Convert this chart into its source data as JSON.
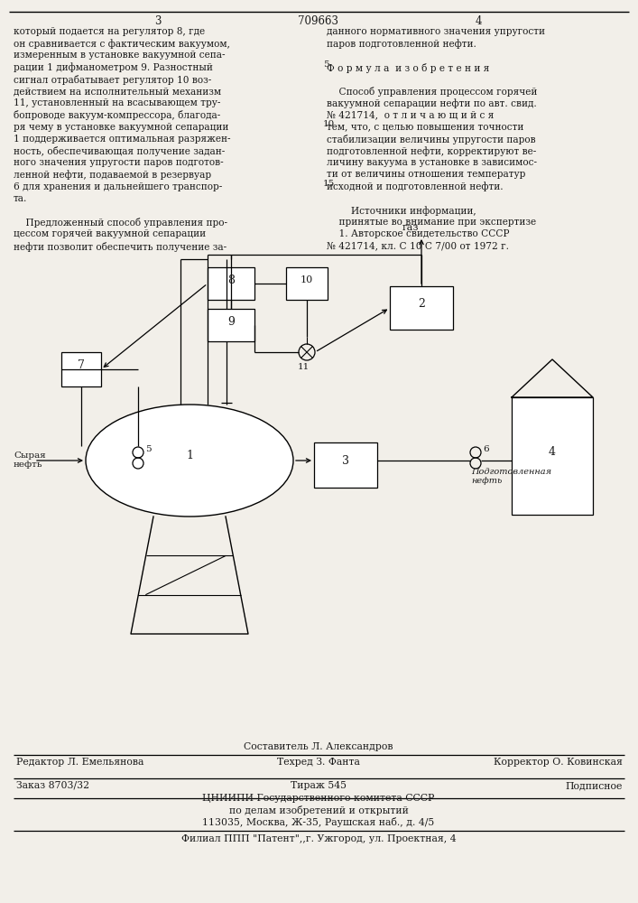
{
  "bg_color": "#f2efe9",
  "text_color": "#1a1a1a",
  "page_number_left": "3",
  "page_number_center": "709663",
  "page_number_right": "4",
  "col_left_text": [
    "который подается на регулятор 8, где",
    "он сравнивается с фактическим вакуумом,",
    "измеренным в установке вакуумной сепа-",
    "рации 1 дифманометром 9. Разностный",
    "сигнал отрабатывает регулятор 10 воз-",
    "действием на исполнительный механизм",
    "11, установленный на всасывающем тру-",
    "бопроводе вакуум-компрессора, благода-",
    "ря чему в установке вакуумной сепарации",
    "1 поддерживается оптимальная разряжен-",
    "ность, обеспечивающая получение задан-",
    "ного значения упругости паров подготов-",
    "ленной нефти, подаваемой в резервуар",
    "6 для хранения и дальнейшего транспор-",
    "та.",
    "",
    "    Предложенный способ управления про-",
    "цессом горячей вакуумной сепарации",
    "нефти позволит обеспечить получение за-"
  ],
  "col_right_text": [
    "данного нормативного значения упругости",
    "паров подготовленной нефти.",
    "",
    "Ф о р м у л а  и з о б р е т е н и я",
    "",
    "    Способ управления процессом горячей",
    "вакуумной сепарации нефти по авт. свид.",
    "№ 421714,  о т л и ч а ю щ и й с я",
    "тем, что, с целью повышения точности",
    "стабилизации величины упругости паров",
    "подготовленной нефти, корректируют ве-",
    "личину вакуума в установке в зависимос-",
    "ти от величины отношения температур",
    "исходной и подготовленной нефти.",
    "",
    "        Источники информации,",
    "    принятые во внимание при экспертизе",
    "    1. Авторское свидетельство СССР",
    "№ 421714, кл. С 10 С 7/00 от 1972 г."
  ],
  "line_number_5": "5",
  "line_number_10": "10",
  "line_number_15": "15",
  "footer_line1": "Составитель Л. Александров",
  "footer_line2_left": "Редактор Л. Емельянова",
  "footer_line2_mid": "Техред З. Фанта",
  "footer_line2_right": "Корректор О. Ковинская",
  "footer_line3_left": "Заказ 8703/32",
  "footer_line3_mid": "Тираж 545",
  "footer_line3_right": "Подписное",
  "footer_line4": "ЦНИИПИ Государственного комитета СССР",
  "footer_line5": "по делам изобретений и открытий",
  "footer_line6": "113035, Москва, Ж-35, Раушская наб., д. 4/5",
  "footer_line7": "Филиал ППП \"Патент\",,г. Ужгород, ул. Проектная, 4",
  "diagram": {
    "gas_label": "газ",
    "syraya_neft_label": "Сырая\nнефть",
    "podg_neft_label": "Подготовленная\nнефть",
    "node1_label": "1",
    "node2_label": "2",
    "node3_label": "3",
    "node4_label": "4",
    "node5_label": "5",
    "node6_label": "6",
    "node7_label": "7",
    "node8_label": "8",
    "node9_label": "9",
    "node10_label": "10",
    "node11_label": "11"
  }
}
